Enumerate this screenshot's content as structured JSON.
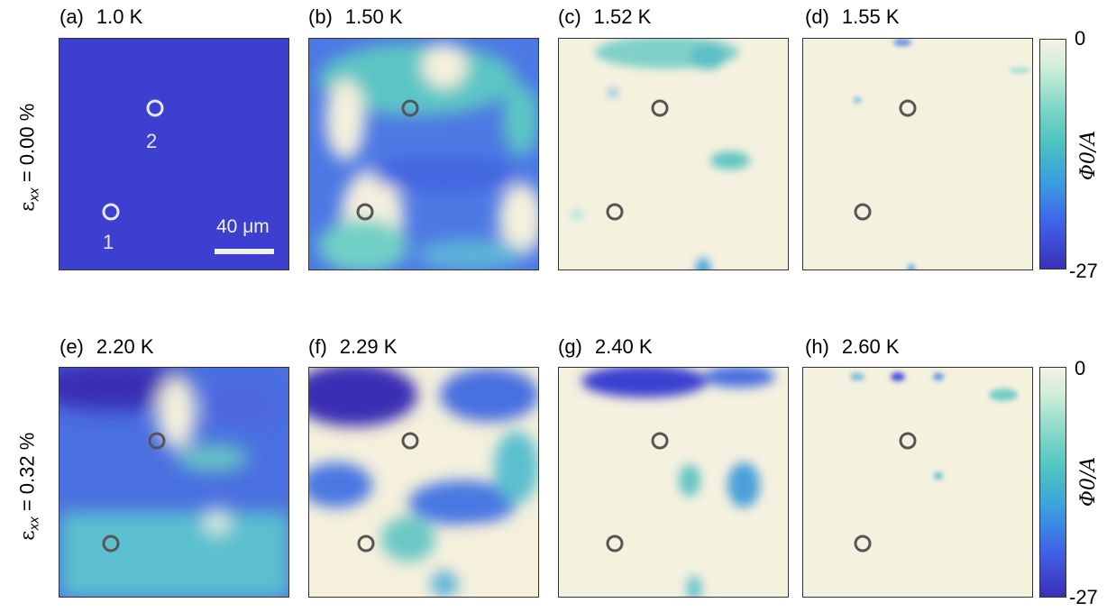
{
  "row_labels": [
    {
      "symbol": "ε",
      "subscript": "xx",
      "value": " = 0.00 %"
    },
    {
      "symbol": "ε",
      "subscript": "xx",
      "value": " = 0.32 %"
    }
  ],
  "panels": [
    {
      "tag": "(a)",
      "temp": "1.0 K"
    },
    {
      "tag": "(b)",
      "temp": "1.50 K"
    },
    {
      "tag": "(c)",
      "temp": "1.52 K"
    },
    {
      "tag": "(d)",
      "temp": "1.55 K"
    },
    {
      "tag": "(e)",
      "temp": "2.20 K"
    },
    {
      "tag": "(f)",
      "temp": "2.29 K"
    },
    {
      "tag": "(g)",
      "temp": "2.40 K"
    },
    {
      "tag": "(h)",
      "temp": "2.60 K"
    }
  ],
  "point_labels": [
    "1",
    "2"
  ],
  "scalebar": "40 μm",
  "colorbar": {
    "max_label": "0",
    "min_label": "-27",
    "label": "Φ0/A",
    "colors": [
      "#f6f2e2",
      "#7fd6c8",
      "#4cc3c0",
      "#3a9ee0",
      "#3f63e8",
      "#3b2fb8"
    ]
  }
}
